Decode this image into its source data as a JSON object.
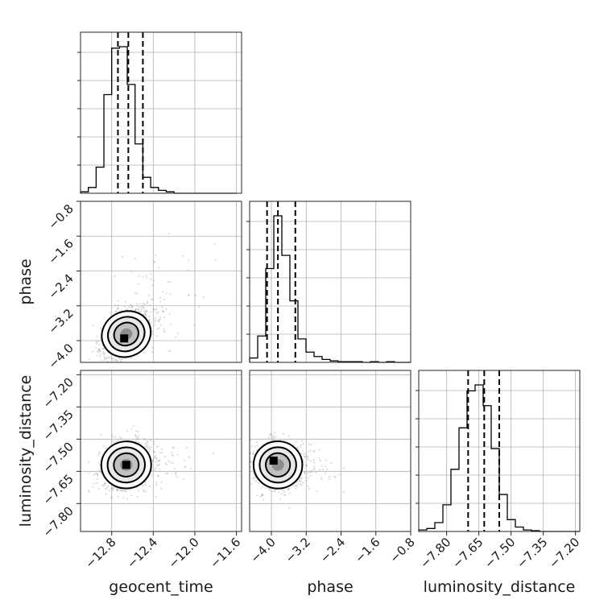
{
  "chart_data": {
    "type": "corner",
    "parameters": [
      {
        "name": "geocent_time",
        "range": [
          -13.1,
          -11.55
        ],
        "ticks": [
          -12.8,
          -12.4,
          -12.0,
          -11.6
        ],
        "tick_labels": [
          "−12.8",
          "−12.4",
          "−12.0",
          "−11.6"
        ],
        "quantiles": [
          -12.74,
          -12.64,
          -12.5
        ],
        "hist_bin_edges": [
          -13.1,
          -13.025,
          -12.95,
          -12.875,
          -12.8,
          -12.725,
          -12.65,
          -12.575,
          -12.5,
          -12.425,
          -12.35,
          -12.275,
          -12.2,
          -12.125,
          -12.05,
          -11.975,
          -11.9,
          -11.825,
          -11.75,
          -11.675,
          -11.6
        ],
        "hist_counts": [
          1,
          4,
          18,
          68,
          100,
          101,
          75,
          34,
          11,
          4,
          2,
          1,
          0,
          0,
          0,
          0,
          0,
          0,
          0,
          0
        ]
      },
      {
        "name": "phase",
        "range": [
          -4.5,
          -0.8
        ],
        "ticks": [
          -4.0,
          -3.2,
          -2.4,
          -1.6,
          -0.8
        ],
        "tick_labels": [
          "−4.0",
          "−3.2",
          "−2.4",
          "−1.6",
          "−0.8"
        ],
        "quantiles": [
          -4.1,
          -3.85,
          -3.45
        ],
        "hist_bin_edges": [
          -4.5,
          -4.315,
          -4.13,
          -3.945,
          -3.76,
          -3.575,
          -3.39,
          -3.205,
          -3.02,
          -2.835,
          -2.65,
          -2.465,
          -2.28,
          -2.095,
          -1.91,
          -1.725,
          -1.54,
          -1.355,
          -1.17,
          -0.985,
          -0.8
        ],
        "hist_counts": [
          3,
          18,
          64,
          100,
          73,
          42,
          16,
          7,
          4,
          2,
          1,
          0.5,
          0.5,
          0.5,
          0,
          0.5,
          0,
          0.5,
          0,
          0
        ]
      },
      {
        "name": "luminosity_distance",
        "range": [
          -7.93,
          -7.18
        ],
        "ticks": [
          -7.8,
          -7.65,
          -7.5,
          -7.35,
          -7.2
        ],
        "tick_labels": [
          "−7.80",
          "−7.65",
          "−7.50",
          "−7.35",
          "−7.20"
        ],
        "quantiles": [
          -7.7,
          -7.625,
          -7.555
        ],
        "hist_bin_edges": [
          -7.93,
          -7.8925,
          -7.855,
          -7.8175,
          -7.78,
          -7.7425,
          -7.705,
          -7.6675,
          -7.63,
          -7.5925,
          -7.555,
          -7.5175,
          -7.48,
          -7.4425,
          -7.405,
          -7.3675,
          -7.33,
          -7.2925,
          -7.255,
          -7.2175,
          -7.18
        ],
        "hist_counts": [
          1,
          2,
          6,
          18,
          42,
          70,
          95,
          99,
          85,
          56,
          25,
          8,
          3,
          1,
          0.5,
          0,
          0,
          0,
          0,
          0
        ]
      }
    ],
    "pairs": [
      {
        "x": "geocent_time",
        "y": "phase",
        "mean": [
          -12.66,
          -3.85
        ],
        "sd": [
          0.12,
          0.28
        ],
        "corr": 0.5,
        "contour_levels": [
          "0.5",
          "1.0",
          "1.5",
          "2.0"
        ],
        "max_density_cell": [
          -12.68,
          -3.95
        ]
      },
      {
        "x": "geocent_time",
        "y": "luminosity_distance",
        "mean": [
          -12.66,
          -7.62
        ],
        "sd": [
          0.12,
          0.055
        ],
        "corr": 0.15,
        "contour_levels": [
          "0.5",
          "1.0",
          "1.5",
          "2.0"
        ],
        "max_density_cell": [
          -12.66,
          -7.62
        ]
      },
      {
        "x": "phase",
        "y": "luminosity_distance",
        "mean": [
          -3.85,
          -7.62
        ],
        "sd": [
          0.28,
          0.055
        ],
        "corr": -0.05,
        "contour_levels": [
          "0.5",
          "1.0",
          "1.5",
          "2.0"
        ],
        "max_density_cell": [
          -3.95,
          -7.6
        ]
      }
    ],
    "grid": true,
    "xlabel_row": [
      "geocent_time",
      "phase",
      "luminosity_distance"
    ],
    "ylabel_col": [
      "phase",
      "luminosity_distance"
    ]
  }
}
